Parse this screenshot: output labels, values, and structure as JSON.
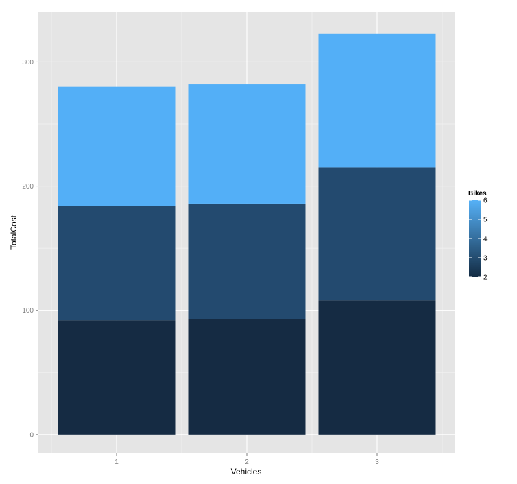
{
  "chart_data": {
    "type": "bar",
    "stacked": true,
    "xlabel": "Vehicles",
    "ylabel": "TotalCost",
    "categories": [
      "1",
      "2",
      "3"
    ],
    "ylim": [
      -15,
      340
    ],
    "yticks": [
      0,
      100,
      200,
      300
    ],
    "grid": true,
    "series": [
      {
        "color": "#152b43",
        "values": [
          92,
          93,
          108
        ]
      },
      {
        "color": "#234a6f",
        "values": [
          92,
          93,
          107
        ]
      },
      {
        "color": "#53aff7",
        "values": [
          96,
          96,
          108
        ]
      }
    ],
    "legend": {
      "title": "Bikes",
      "placement": "right",
      "type": "colorbar",
      "range": [
        2,
        6
      ],
      "labels": [
        "6",
        "5",
        "4",
        "3",
        "2"
      ],
      "colors": [
        "#132b43",
        "#56b1f7"
      ]
    }
  }
}
